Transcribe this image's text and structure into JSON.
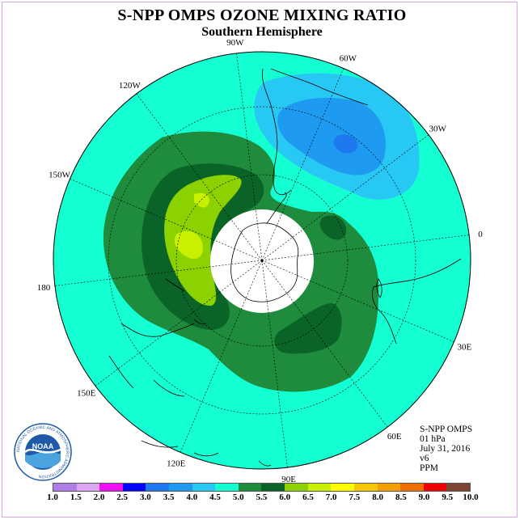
{
  "header": {
    "title": "S-NPP OMPS OZONE MIXING RATIO",
    "subtitle": "Southern Hemisphere"
  },
  "longitude_labels": [
    "0",
    "30W",
    "60W",
    "90W",
    "120W",
    "150W",
    "180",
    "150E",
    "120E",
    "90E",
    "60E",
    "30E"
  ],
  "info": {
    "instrument": "S-NPP OMPS",
    "level": "01 hPa",
    "date": "July 31, 2016",
    "version": "v6",
    "units": "PPM"
  },
  "logo": {
    "text": "NOAA",
    "ring_text": "NATIONAL OCEANIC AND ATMOSPHERIC ADMINISTRATION",
    "bottom_text": "U.S. DEPARTMENT OF COMMERCE",
    "icon": "noaa-logo"
  },
  "colorbar": {
    "ticks": [
      "1.0",
      "1.5",
      "2.0",
      "2.5",
      "3.0",
      "3.5",
      "4.0",
      "4.5",
      "5.0",
      "5.5",
      "6.0",
      "6.5",
      "7.0",
      "7.5",
      "8.0",
      "8.5",
      "9.0",
      "9.5",
      "10.0"
    ],
    "colors": [
      "#b07de6",
      "#dca6f0",
      "#f00ff0",
      "#0000ff",
      "#1e78f0",
      "#1e9bf0",
      "#28c8f5",
      "#14ffd2",
      "#1e8c3c",
      "#0a6428",
      "#8cd200",
      "#c8f000",
      "#ffff00",
      "#f5c800",
      "#f5a000",
      "#f06e00",
      "#f00000",
      "#7d4632"
    ]
  },
  "map_colors": {
    "background": "#14ffd2",
    "blue_outer": "#28c8f5",
    "blue_mid": "#1e9bf0",
    "blue_core": "#1e78f0",
    "green": "#1e8c3c",
    "dark_green": "#0a6428",
    "lime": "#8cd200",
    "yellow_green": "#c8f000",
    "pole_hole": "#ffffff"
  }
}
